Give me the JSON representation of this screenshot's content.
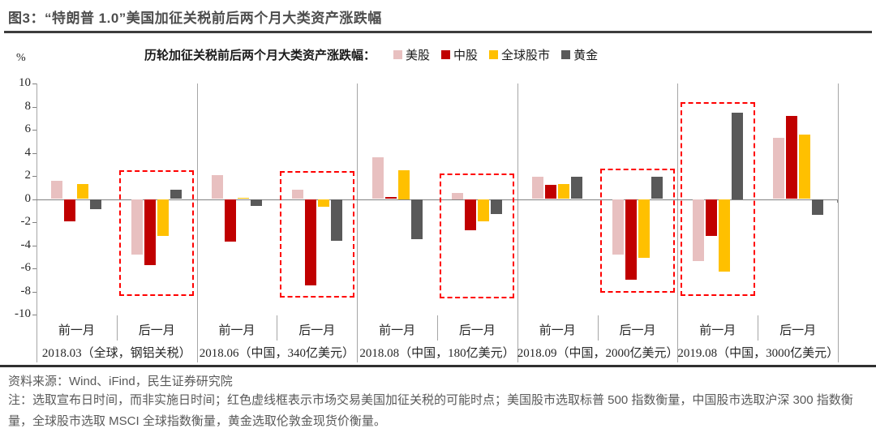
{
  "header": {
    "title": "图3：“特朗普 1.0”美国加征关税前后两个月大类资产涨跌幅"
  },
  "chart_data": {
    "type": "bar",
    "title": "历轮加征关税前后两个月大类资产涨跌幅：",
    "ylabel": "%",
    "ylim": [
      -10,
      10
    ],
    "ytick_step": 2,
    "grid": false,
    "legend_position": "top",
    "series_names": [
      "美股",
      "中股",
      "全球股市",
      "黄金"
    ],
    "series_keys": [
      "us-equity",
      "china-equity",
      "global-equity",
      "gold"
    ],
    "series_colors": [
      "#e8c0c0",
      "#c00000",
      "#ffc000",
      "#595959"
    ],
    "highlight_box_color": "#ff0000",
    "yticks": [
      10,
      8,
      6,
      4,
      2,
      0,
      -2,
      -4,
      -6,
      -8,
      -10
    ],
    "groups": [
      {
        "label": "2018.03（全球，钢铝关税）",
        "subgroups": [
          {
            "period": "前一月",
            "values": [
              1.6,
              -1.9,
              1.3,
              -0.9
            ],
            "highlighted": false
          },
          {
            "period": "后一月",
            "values": [
              -4.8,
              -5.7,
              -3.2,
              0.8
            ],
            "highlighted": true,
            "box_top": 2.5,
            "box_bottom": -8.4
          }
        ]
      },
      {
        "label": "2018.06（中国，340亿美元）",
        "subgroups": [
          {
            "period": "前一月",
            "values": [
              2.1,
              -3.7,
              0.1,
              -0.6
            ],
            "highlighted": false
          },
          {
            "period": "后一月",
            "values": [
              0.8,
              -7.5,
              -0.7,
              -3.6
            ],
            "highlighted": true,
            "box_top": 2.4,
            "box_bottom": -8.5
          }
        ]
      },
      {
        "label": "2018.08（中国，180亿美元）",
        "subgroups": [
          {
            "period": "前一月",
            "values": [
              3.6,
              0.2,
              2.5,
              -3.5
            ],
            "highlighted": false
          },
          {
            "period": "后一月",
            "values": [
              0.5,
              -2.7,
              -1.9,
              -1.3
            ],
            "highlighted": true,
            "box_top": 2.2,
            "box_bottom": -8.6
          }
        ]
      },
      {
        "label": "2018.09（中国，2000亿美元）",
        "subgroups": [
          {
            "period": "前一月",
            "values": [
              1.9,
              1.2,
              1.3,
              1.9
            ],
            "highlighted": false
          },
          {
            "period": "后一月",
            "values": [
              -4.8,
              -7.0,
              -5.1,
              1.9
            ],
            "highlighted": true,
            "box_top": 2.6,
            "box_bottom": -8.1
          }
        ]
      },
      {
        "label": "2019.08（中国，3000亿美元）",
        "subgroups": [
          {
            "period": "前一月",
            "values": [
              -5.4,
              -3.2,
              -6.3,
              7.5
            ],
            "highlighted": true,
            "box_top": 8.4,
            "box_bottom": -8.4
          },
          {
            "period": "后一月",
            "values": [
              5.3,
              7.2,
              5.6,
              -1.4
            ],
            "highlighted": false
          }
        ]
      }
    ]
  },
  "footer": {
    "source": "资料来源：Wind、iFind，民生证券研究院",
    "note": "注：选取宣布日时间，而非实施日时间；红色虚线框表示市场交易美国加征关税的可能时点；美国股市选取标普 500 指数衡量，中国股市选取沪深 300 指数衡量，全球股市选取 MSCI 全球指数衡量，黄金选取伦敦金现货价衡量。"
  }
}
